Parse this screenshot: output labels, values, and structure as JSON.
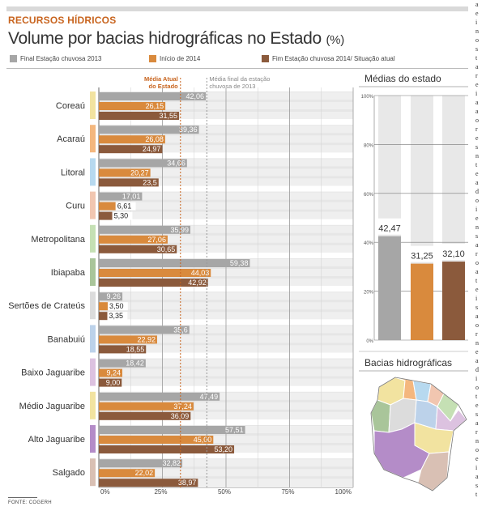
{
  "kicker": "RECURSOS HÍDRICOS",
  "title": "Volume por bacias hidrográficas no Estado",
  "title_unit": "(%)",
  "legend": [
    {
      "label": "Final Estação chuvosa 2013",
      "color": "#a6a6a6"
    },
    {
      "label": "Início de 2014",
      "color": "#d98a3d"
    },
    {
      "label": "Fim Estação chuvosa 2014/ Situação atual",
      "color": "#8b5a3c"
    }
  ],
  "source": "FONTE: COGERH",
  "right_column_letters": [
    "a",
    "e",
    "i",
    "n",
    "o",
    "s",
    "t",
    "a",
    "r",
    "e",
    "i",
    "a",
    "a",
    "o",
    "r",
    "e",
    "s",
    "n",
    "t",
    "e",
    "a",
    "d",
    "o",
    "i",
    "e",
    "n",
    "s",
    "a",
    "r",
    "o",
    "a",
    "t",
    "e",
    "i",
    "s",
    "a",
    "o",
    "r",
    "n",
    "e",
    "a",
    "d",
    "i",
    "o",
    "t",
    "e",
    "s",
    "a",
    "r",
    "n",
    "o",
    "e",
    "i",
    "a",
    "s",
    "t"
  ],
  "chart_data": [
    {
      "type": "bar",
      "title": "Volume por bacias hidrográficas no Estado (%)",
      "orientation": "horizontal",
      "categories": [
        "Coreaú",
        "Acaraú",
        "Litoral",
        "Curu",
        "Metropolitana",
        "Ibiapaba",
        "Sertões de Crateús",
        "Banabuiú",
        "Baixo Jaguaribe",
        "Médio Jaguaribe",
        "Alto Jaguaribe",
        "Salgado"
      ],
      "category_colors": [
        "#f2e3a0",
        "#f4b77e",
        "#b7d9ef",
        "#f1c6b0",
        "#c5e0b4",
        "#a9c59a",
        "#dcdcdc",
        "#bcd2ea",
        "#dcc2e0",
        "#f2e3a0",
        "#b48cc8",
        "#d9c0b4"
      ],
      "series": [
        {
          "name": "Final Estação chuvosa 2013",
          "values": [
            42.06,
            39.36,
            34.66,
            17.01,
            35.99,
            59.38,
            9.26,
            35.6,
            18.42,
            47.49,
            57.51,
            32.82
          ],
          "labels": [
            "42,06",
            "39,36",
            "34,66",
            "17,01",
            "35,99",
            "59,38",
            "9,26",
            "35,6",
            "18,42",
            "47,49",
            "57,51",
            "32,82"
          ]
        },
        {
          "name": "Início de 2014",
          "values": [
            26.15,
            26.08,
            20.27,
            6.61,
            27.06,
            44.03,
            3.5,
            22.92,
            9.24,
            37.24,
            45.0,
            22.02
          ],
          "labels": [
            "26,15",
            "26,08",
            "20,27",
            "6,61",
            "27,06",
            "44,03",
            "3,50",
            "22,92",
            "9,24",
            "37,24",
            "45,00",
            "22,02"
          ]
        },
        {
          "name": "Fim Estação chuvosa 2014/ Situação atual",
          "values": [
            31.55,
            24.97,
            23.5,
            5.3,
            30.65,
            42.92,
            3.35,
            18.55,
            9.0,
            36.09,
            53.2,
            38.97
          ],
          "labels": [
            "31,55",
            "24,97",
            "23,5",
            "5,30",
            "30,65",
            "42,92",
            "3,35",
            "18,55",
            "9,00",
            "36,09",
            "53,20",
            "38,97"
          ]
        }
      ],
      "xlim": [
        0,
        100
      ],
      "xticks": [
        "0%",
        "25%",
        "50%",
        "75%",
        "100%"
      ],
      "reference_lines": [
        {
          "label": "Média Atual do Estado",
          "value": 32.1,
          "color": "#c8641e"
        },
        {
          "label": "Média final da estação chuvosa de 2013",
          "value": 42.47,
          "color": "#999999"
        }
      ]
    },
    {
      "type": "bar",
      "title": "Médias do estado",
      "categories": [
        "Final Estação chuvosa 2013",
        "Início de 2014",
        "Fim Estação chuvosa 2014/ Situação atual"
      ],
      "values": [
        42.47,
        31.25,
        32.1
      ],
      "labels": [
        "42,47",
        "31,25",
        "32,10"
      ],
      "colors": [
        "#a6a6a6",
        "#d98a3d",
        "#8b5a3c"
      ],
      "ylim": [
        0,
        100
      ],
      "yticks": [
        "0%",
        "20%",
        "40%",
        "60%",
        "80%",
        "100%"
      ]
    }
  ],
  "map": {
    "title": "Bacias hidrográficas",
    "region_colors": [
      "#f2e3a0",
      "#f4b77e",
      "#b7d9ef",
      "#f1c6b0",
      "#c5e0b4",
      "#a9c59a",
      "#dcdcdc",
      "#bcd2ea",
      "#dcc2e0",
      "#f2e3a0",
      "#b48cc8",
      "#d9c0b4"
    ]
  }
}
